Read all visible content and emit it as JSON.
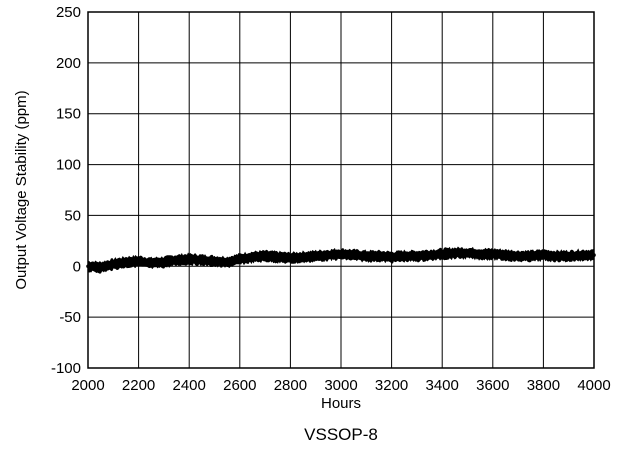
{
  "chart_data": {
    "type": "line",
    "xlabel": "Hours",
    "ylabel": "Output Voltage Stability (ppm)",
    "caption": "VSSOP-8",
    "xlim": [
      2000,
      4000
    ],
    "ylim": [
      -100,
      250
    ],
    "xticks": [
      2000,
      2200,
      2400,
      2600,
      2800,
      3000,
      3200,
      3400,
      3600,
      3800,
      4000
    ],
    "yticks": [
      -100,
      -50,
      0,
      50,
      100,
      150,
      200,
      250
    ],
    "grid": true,
    "series": [
      {
        "color": "#000000",
        "band_halfwidth": 3.5,
        "x": [
          2000,
          2050,
          2100,
          2150,
          2200,
          2250,
          2300,
          2350,
          2400,
          2450,
          2500,
          2550,
          2600,
          2650,
          2700,
          2750,
          2800,
          2850,
          2900,
          2950,
          3000,
          3050,
          3100,
          3150,
          3200,
          3250,
          3300,
          3350,
          3400,
          3450,
          3500,
          3550,
          3600,
          3650,
          3700,
          3750,
          3800,
          3850,
          3900,
          3950,
          4000
        ],
        "y": [
          0,
          -1,
          2,
          4,
          5,
          3,
          4,
          6,
          7,
          6,
          5,
          4,
          7,
          9,
          10,
          9,
          8,
          9,
          10,
          11,
          12,
          11,
          10,
          10,
          9,
          10,
          10,
          11,
          12,
          13,
          13,
          12,
          12,
          11,
          10,
          10,
          11,
          10,
          10,
          11,
          11
        ]
      }
    ]
  }
}
